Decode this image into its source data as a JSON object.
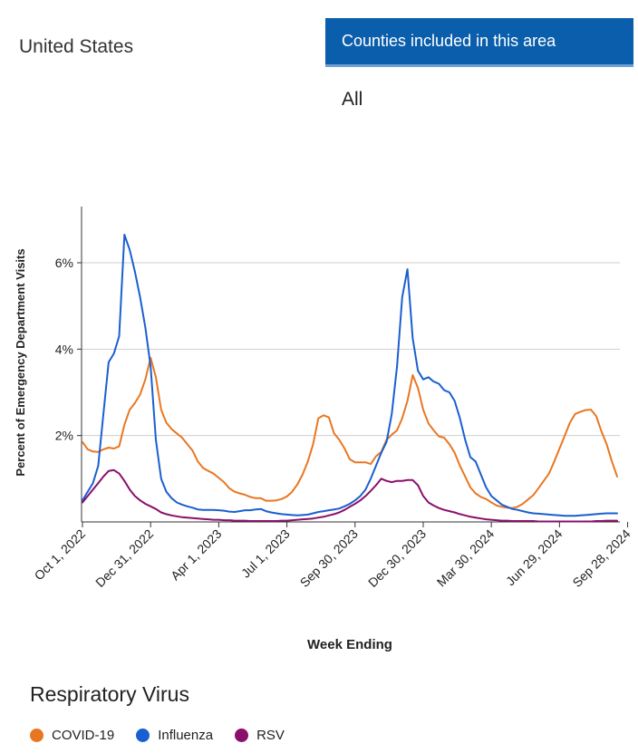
{
  "header": {
    "area": "United States",
    "counties_button": "Counties included in this area",
    "counties_value": "All"
  },
  "legend": {
    "title": "Respiratory Virus",
    "items": [
      {
        "label": "COVID-19",
        "color": "#e87722"
      },
      {
        "label": "Influenza",
        "color": "#1a5fd0"
      },
      {
        "label": "RSV",
        "color": "#8a0f6a"
      }
    ]
  },
  "chart_data": {
    "type": "line",
    "title": "",
    "xlabel": "Week Ending",
    "ylabel": "Percent of Emergency Department Visits",
    "ylim": [
      0,
      7.3
    ],
    "yticks": [
      2,
      4,
      6
    ],
    "ytick_labels": [
      "2%",
      "4%",
      "6%"
    ],
    "grid": "horizontal",
    "x_tick_indices": [
      0,
      13,
      26,
      39,
      52,
      65,
      78,
      91,
      104
    ],
    "x_tick_labels": [
      "Oct 1, 2022",
      "Dec 31, 2022",
      "Apr 1, 2023",
      "Jul 1, 2023",
      "Sep 30, 2023",
      "Dec 30, 2023",
      "Mar 30, 2024",
      "Jun 29, 2024",
      "Sep 28, 2024"
    ],
    "series": [
      {
        "name": "COVID-19",
        "color": "#e87722",
        "values": [
          1.85,
          1.68,
          1.63,
          1.62,
          1.68,
          1.72,
          1.7,
          1.75,
          2.25,
          2.6,
          2.75,
          2.95,
          3.3,
          3.8,
          3.35,
          2.6,
          2.3,
          2.15,
          2.05,
          1.95,
          1.8,
          1.65,
          1.4,
          1.25,
          1.18,
          1.12,
          1.02,
          0.92,
          0.78,
          0.7,
          0.66,
          0.63,
          0.58,
          0.55,
          0.55,
          0.49,
          0.49,
          0.5,
          0.53,
          0.59,
          0.7,
          0.87,
          1.1,
          1.4,
          1.8,
          2.4,
          2.47,
          2.42,
          2.05,
          1.9,
          1.7,
          1.45,
          1.38,
          1.38,
          1.38,
          1.34,
          1.52,
          1.62,
          1.9,
          2.02,
          2.12,
          2.4,
          2.8,
          3.4,
          3.1,
          2.6,
          2.28,
          2.12,
          1.98,
          1.95,
          1.8,
          1.6,
          1.3,
          1.05,
          0.8,
          0.66,
          0.58,
          0.53,
          0.45,
          0.38,
          0.35,
          0.33,
          0.32,
          0.35,
          0.42,
          0.52,
          0.62,
          0.78,
          0.95,
          1.12,
          1.4,
          1.7,
          2.0,
          2.3,
          2.5,
          2.55,
          2.59,
          2.6,
          2.45,
          2.1,
          1.8,
          1.4,
          1.05
        ]
      },
      {
        "name": "Influenza",
        "color": "#1a5fd0",
        "values": [
          0.5,
          0.7,
          0.9,
          1.3,
          2.5,
          3.7,
          3.9,
          4.3,
          6.65,
          6.3,
          5.8,
          5.2,
          4.5,
          3.6,
          1.9,
          1.0,
          0.7,
          0.55,
          0.45,
          0.4,
          0.36,
          0.33,
          0.29,
          0.28,
          0.28,
          0.28,
          0.27,
          0.26,
          0.24,
          0.23,
          0.25,
          0.27,
          0.27,
          0.29,
          0.3,
          0.25,
          0.22,
          0.2,
          0.18,
          0.17,
          0.16,
          0.15,
          0.16,
          0.17,
          0.2,
          0.23,
          0.25,
          0.27,
          0.29,
          0.31,
          0.36,
          0.42,
          0.5,
          0.6,
          0.75,
          1.0,
          1.3,
          1.6,
          1.85,
          2.5,
          3.6,
          5.2,
          5.85,
          4.25,
          3.5,
          3.3,
          3.35,
          3.25,
          3.2,
          3.05,
          3.0,
          2.8,
          2.4,
          1.9,
          1.5,
          1.4,
          1.1,
          0.8,
          0.6,
          0.5,
          0.4,
          0.35,
          0.3,
          0.28,
          0.25,
          0.22,
          0.2,
          0.19,
          0.18,
          0.17,
          0.16,
          0.15,
          0.14,
          0.14,
          0.14,
          0.15,
          0.16,
          0.17,
          0.18,
          0.19,
          0.2,
          0.2,
          0.2
        ]
      },
      {
        "name": "RSV",
        "color": "#8a0f6a",
        "values": [
          0.45,
          0.6,
          0.75,
          0.9,
          1.05,
          1.18,
          1.2,
          1.12,
          0.95,
          0.75,
          0.6,
          0.5,
          0.42,
          0.36,
          0.3,
          0.22,
          0.18,
          0.15,
          0.13,
          0.11,
          0.1,
          0.09,
          0.08,
          0.07,
          0.06,
          0.05,
          0.05,
          0.04,
          0.04,
          0.03,
          0.03,
          0.03,
          0.02,
          0.02,
          0.02,
          0.02,
          0.02,
          0.02,
          0.03,
          0.03,
          0.04,
          0.05,
          0.06,
          0.07,
          0.08,
          0.1,
          0.12,
          0.15,
          0.18,
          0.22,
          0.28,
          0.35,
          0.42,
          0.5,
          0.6,
          0.72,
          0.85,
          1.0,
          0.95,
          0.92,
          0.95,
          0.95,
          0.97,
          0.97,
          0.85,
          0.6,
          0.45,
          0.38,
          0.32,
          0.28,
          0.25,
          0.22,
          0.18,
          0.15,
          0.12,
          0.1,
          0.08,
          0.06,
          0.05,
          0.04,
          0.03,
          0.03,
          0.02,
          0.02,
          0.02,
          0.02,
          0.02,
          0.01,
          0.01,
          0.01,
          0.01,
          0.01,
          0.01,
          0.01,
          0.01,
          0.01,
          0.01,
          0.01,
          0.02,
          0.02,
          0.03,
          0.03,
          0.03
        ]
      }
    ]
  }
}
